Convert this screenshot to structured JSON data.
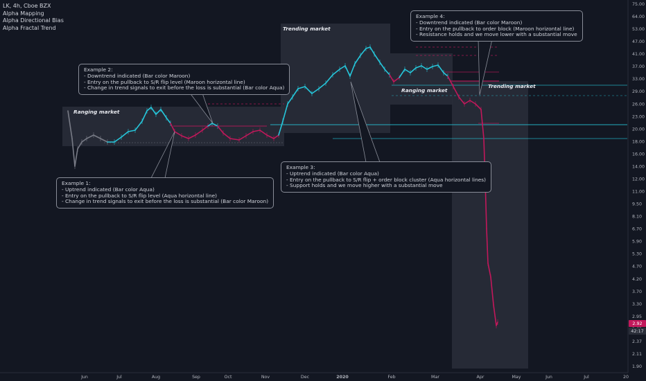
{
  "legend": {
    "symbol_line": "LK, 4h, Cboe BZX",
    "indicators": [
      "Alpha Mapping",
      "Alpha Directional Bias",
      "Alpha Fractal Trend"
    ]
  },
  "regions": [
    {
      "label": "Ranging market"
    },
    {
      "label": "Trending market"
    },
    {
      "label": "Ranging market"
    },
    {
      "label": "Trending market"
    }
  ],
  "callouts": [
    {
      "title": "Example 1:",
      "lines": [
        "- Uptrend indicated (Bar color Aqua)",
        "- Entry on the pullback to S/R flip level (Aqua horizontal line)",
        "- Change in trend signals to exit before the loss is substantial (Bar color Maroon)"
      ]
    },
    {
      "title": "Example 2:",
      "lines": [
        "- Downtrend indicated (Bar color Maroon)",
        "- Entry on the pullback to S/R flip level (Maroon horizontal line)",
        "- Change in trend signals to exit before the loss is substantial (Bar color Aqua)"
      ]
    },
    {
      "title": "Example 3:",
      "lines": [
        "- Uptrend indicated (Bar color Aqua)",
        "- Entry on the pullback to S/R flip + order block cluster (Aqua horizontal lines)",
        "- Support holds and we move higher with a substantial move"
      ]
    },
    {
      "title": "Example 4:",
      "lines": [
        "- Downtrend indicated (Bar color Maroon)",
        "- Entry on the pullback to order block (Maroon horizontal line)",
        "- Resistance holds and we move lower with a substantial move"
      ]
    }
  ],
  "price_axis": {
    "ticks": [
      "75.00",
      "64.00",
      "53.00",
      "47.00",
      "41.00",
      "37.00",
      "33.00",
      "29.00",
      "26.00",
      "23.00",
      "20.00",
      "18.00",
      "16.00",
      "14.00",
      "12.00",
      "11.00",
      "9.50",
      "8.10",
      "6.70",
      "5.90",
      "5.30",
      "4.70",
      "4.20",
      "3.70",
      "3.30",
      "2.95",
      "2.63",
      "2.37",
      "2.11",
      "1.90"
    ],
    "last_price": "2.92",
    "countdown": "42:17",
    "scale": "log"
  },
  "time_axis": {
    "ticks": [
      "Jun",
      "Jul",
      "Aug",
      "Sep",
      "Oct",
      "Nov",
      "Dec",
      "2020",
      "Feb",
      "Mar",
      "Apr",
      "May",
      "Jun",
      "Jul",
      "20"
    ]
  },
  "colors": {
    "uptrend_bar": "#26c6da",
    "downtrend_bar": "#c2185b",
    "neutral_bar": "#787b86",
    "background": "#131722",
    "region_fill": "#2a2e39"
  }
}
